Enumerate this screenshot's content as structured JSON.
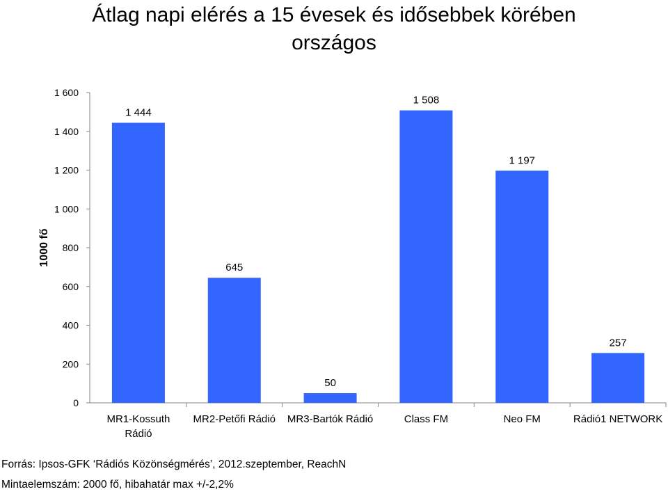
{
  "chart_data": {
    "type": "bar",
    "title_lines": [
      "Átlag napi elérés a 15 évesek és idősebbek körében",
      "országos"
    ],
    "ylabel": "1000 fő",
    "xlabel": "",
    "ylim": [
      0,
      1600
    ],
    "yticks": [
      0,
      200,
      400,
      600,
      800,
      1000,
      1200,
      1400,
      1600
    ],
    "ytick_labels": [
      "0",
      "200",
      "400",
      "600",
      "800",
      "1 000",
      "1 200",
      "1 400",
      "1 600"
    ],
    "grid": false,
    "legend": "none",
    "categories": [
      [
        "MR1-Kossuth",
        "Rádió"
      ],
      [
        "MR2-Petőfi Rádió"
      ],
      [
        "MR3-Bartók Rádió"
      ],
      [
        "Class FM"
      ],
      [
        "Neo FM"
      ],
      [
        "Rádió1 NETWORK"
      ]
    ],
    "values": [
      1444,
      645,
      50,
      1508,
      1197,
      257
    ],
    "data_labels": [
      "1 444",
      "645",
      "50",
      "1 508",
      "1 197",
      "257"
    ],
    "bar_color": "#3366ff"
  },
  "footer": {
    "source": "Forrás: Ipsos-GFK ‘Rádiós Közönségmérés’, 2012.szeptember, ReachN",
    "sample": "Mintaelemszám: 2000 fő, hibahatár max +/-2,2%"
  }
}
